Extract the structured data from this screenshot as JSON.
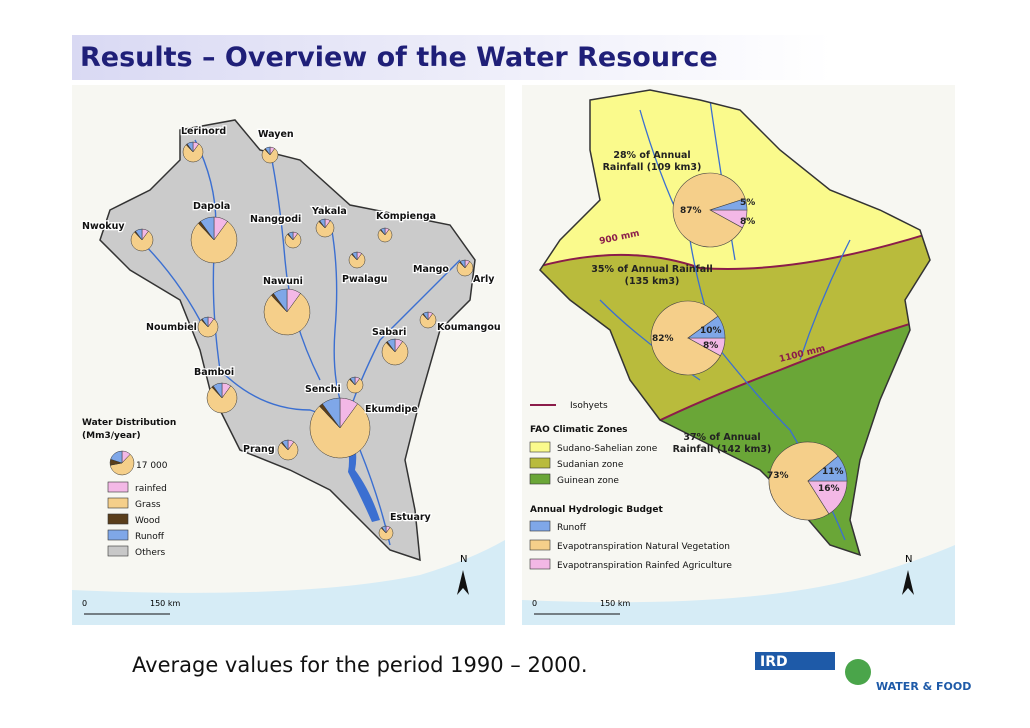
{
  "header": {
    "title": "Results – Overview of the Water Resource"
  },
  "left_map": {
    "places": [
      "Lerinord",
      "Wayen",
      "Dapola",
      "Nanggodi",
      "Yakala",
      "Kompienga",
      "Nwokuy",
      "Mango",
      "Arly",
      "Pwalagu",
      "Nawuni",
      "Noumbiel",
      "Sabari",
      "Koumangou",
      "Bamboi",
      "Ekumdipe",
      "Senchi",
      "Prang",
      "Estuary"
    ],
    "legend": {
      "title": [
        "Water Distribution",
        "(Mm3/year)"
      ],
      "size_label": "17 000",
      "items": [
        {
          "label": "rainfed",
          "color": "#f3b8e6"
        },
        {
          "label": "Grass",
          "color": "#f5cf8a"
        },
        {
          "label": "Wood",
          "color": "#5a3e1b"
        },
        {
          "label": "Runoff",
          "color": "#7fa7e8"
        },
        {
          "label": "Others",
          "color": "#c8c8c8"
        }
      ]
    },
    "north": "N",
    "scale": [
      "0",
      "150 km"
    ]
  },
  "right_map": {
    "zones": [
      {
        "rainfall": [
          "28% of Annual",
          "Rainfall (109 km3)"
        ],
        "budget": [
          {
            "value": 5,
            "label": "5%"
          },
          {
            "value": 87,
            "label": "87%"
          },
          {
            "value": 8,
            "label": "8%"
          }
        ]
      },
      {
        "rainfall": [
          "35% of Annual Rainfall",
          "(135 km3)"
        ],
        "budget": [
          {
            "value": 10,
            "label": "10%"
          },
          {
            "value": 82,
            "label": "82%"
          },
          {
            "value": 8,
            "label": "8%"
          }
        ]
      },
      {
        "rainfall": [
          "37% of Annual",
          "Rainfall (142 km3)"
        ],
        "budget": [
          {
            "value": 11,
            "label": "11%"
          },
          {
            "value": 73,
            "label": "73%"
          },
          {
            "value": 16,
            "label": "16%"
          }
        ]
      }
    ],
    "isohyets": [
      "900 mm",
      "1100 mm"
    ],
    "legend": {
      "isohyet_label": "Isohyets",
      "zones_title": "FAO Climatic Zones",
      "zones": [
        {
          "label": "Sudano-Sahelian zone",
          "color": "#fafa8c"
        },
        {
          "label": "Sudanian zone",
          "color": "#b9bb3c"
        },
        {
          "label": "Guinean zone",
          "color": "#6aa637"
        }
      ],
      "budget_title": "Annual Hydrologic Budget",
      "budget": [
        {
          "label": "Runoff",
          "color": "#7fa7e8"
        },
        {
          "label": "Evapotranspiration Natural Vegetation",
          "color": "#f5cf8a"
        },
        {
          "label": "Evapotranspiration Rainfed Agriculture",
          "color": "#f3b8e6"
        }
      ]
    },
    "north": "N",
    "scale": [
      "0",
      "150 km"
    ]
  },
  "footer": {
    "note": "Average values for the period 1990 – 2000.",
    "logos": [
      "IRD",
      "WATER & FOOD"
    ]
  }
}
